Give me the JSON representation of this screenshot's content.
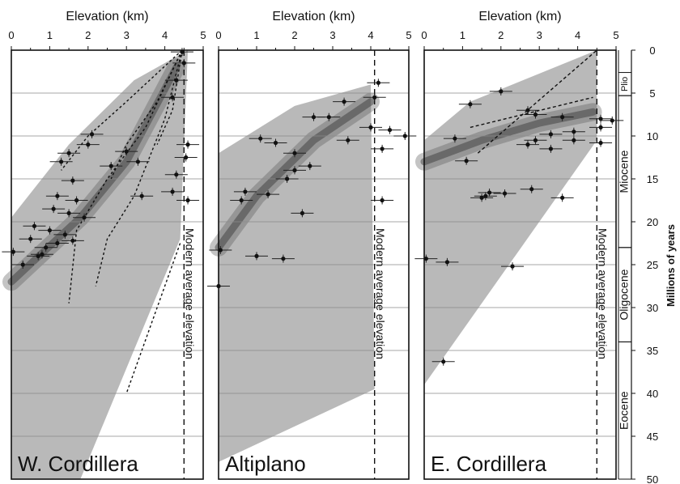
{
  "chart_data": [
    {
      "type": "scatter",
      "title": "",
      "xlabel": "Elevation (km)",
      "ylabel": "Millions of years",
      "panel_label": "W. Cordillera",
      "reference_line_label": "Modern average elevation",
      "x_ticks": [
        "0",
        "1",
        "2",
        "3",
        "4",
        "5"
      ],
      "xlim": [
        0,
        5
      ],
      "ylim": [
        50,
        0
      ],
      "modern_average_elevation_km": 4.5,
      "points": [
        {
          "x": 4.45,
          "y": 0.2
        },
        {
          "x": 4.5,
          "y": 1.5
        },
        {
          "x": 4.3,
          "y": 3.5
        },
        {
          "x": 4.2,
          "y": 5.5
        },
        {
          "x": 2.1,
          "y": 9.8
        },
        {
          "x": 2.0,
          "y": 11.0
        },
        {
          "x": 3.0,
          "y": 11.8
        },
        {
          "x": 4.6,
          "y": 11.0
        },
        {
          "x": 4.55,
          "y": 12.5
        },
        {
          "x": 1.5,
          "y": 12.0
        },
        {
          "x": 1.3,
          "y": 13.0
        },
        {
          "x": 2.6,
          "y": 13.5
        },
        {
          "x": 3.3,
          "y": 13.0
        },
        {
          "x": 4.3,
          "y": 14.5
        },
        {
          "x": 1.6,
          "y": 15.2
        },
        {
          "x": 1.2,
          "y": 17.0
        },
        {
          "x": 1.7,
          "y": 17.5
        },
        {
          "x": 3.4,
          "y": 17.0
        },
        {
          "x": 4.2,
          "y": 16.5
        },
        {
          "x": 4.6,
          "y": 17.5
        },
        {
          "x": 1.1,
          "y": 18.5
        },
        {
          "x": 1.5,
          "y": 19.0
        },
        {
          "x": 1.9,
          "y": 19.5
        },
        {
          "x": 0.6,
          "y": 20.5
        },
        {
          "x": 1.0,
          "y": 21.0
        },
        {
          "x": 1.4,
          "y": 21.5
        },
        {
          "x": 0.5,
          "y": 22.0
        },
        {
          "x": 1.2,
          "y": 22.5
        },
        {
          "x": 1.6,
          "y": 22.2
        },
        {
          "x": 0.9,
          "y": 23.0
        },
        {
          "x": 0.7,
          "y": 24.0
        },
        {
          "x": 0.05,
          "y": 23.5
        },
        {
          "x": 0.3,
          "y": 25.0
        },
        {
          "x": 0.8,
          "y": 23.8
        }
      ],
      "annotation": "Elevation (km)"
    },
    {
      "type": "scatter",
      "title": "",
      "xlabel": "Elevation (km)",
      "ylabel": "Millions of years",
      "panel_label": "Altiplano",
      "reference_line_label": "Modern average elevation",
      "x_ticks": [
        "0",
        "1",
        "2",
        "3",
        "4",
        "5"
      ],
      "xlim": [
        0,
        5
      ],
      "ylim": [
        50,
        0
      ],
      "modern_average_elevation_km": 4.1,
      "points": [
        {
          "x": 4.2,
          "y": 3.8
        },
        {
          "x": 4.1,
          "y": 5.5
        },
        {
          "x": 3.3,
          "y": 6.0
        },
        {
          "x": 2.5,
          "y": 7.8
        },
        {
          "x": 2.9,
          "y": 7.8
        },
        {
          "x": 4.0,
          "y": 9.0
        },
        {
          "x": 4.5,
          "y": 9.3
        },
        {
          "x": 4.9,
          "y": 10.0
        },
        {
          "x": 1.1,
          "y": 10.3
        },
        {
          "x": 1.5,
          "y": 10.8
        },
        {
          "x": 3.4,
          "y": 10.5
        },
        {
          "x": 4.3,
          "y": 11.5
        },
        {
          "x": 2.0,
          "y": 12.0
        },
        {
          "x": 2.4,
          "y": 13.5
        },
        {
          "x": 2.0,
          "y": 14.0
        },
        {
          "x": 1.8,
          "y": 15.0
        },
        {
          "x": 0.7,
          "y": 16.5
        },
        {
          "x": 1.3,
          "y": 16.8
        },
        {
          "x": 0.6,
          "y": 17.5
        },
        {
          "x": 4.3,
          "y": 17.5
        },
        {
          "x": 2.2,
          "y": 19.0
        },
        {
          "x": 0.05,
          "y": 23.3
        },
        {
          "x": 1.0,
          "y": 24.0
        },
        {
          "x": 1.7,
          "y": 24.3
        },
        {
          "x": 0.0,
          "y": 27.5
        }
      ]
    },
    {
      "type": "scatter",
      "title": "",
      "xlabel": "Elevation (km)",
      "ylabel": "Millions of years",
      "panel_label": "E. Cordillera",
      "reference_line_label": "Modern average elevation",
      "x_ticks": [
        "0",
        "1",
        "2",
        "3",
        "4",
        "5"
      ],
      "xlim": [
        0,
        5
      ],
      "ylim": [
        50,
        0
      ],
      "modern_average_elevation_km": 4.5,
      "geologic_epochs": [
        {
          "name": "Plio",
          "start": 2.6,
          "end": 5.3
        },
        {
          "name": "Miocene",
          "start": 5.3,
          "end": 23
        },
        {
          "name": "Oligocene",
          "start": 23,
          "end": 34
        },
        {
          "name": "Eocene",
          "start": 34,
          "end": 50
        }
      ],
      "y_ticks": [
        "0",
        "5",
        "10",
        "15",
        "20",
        "25",
        "30",
        "35",
        "40",
        "45",
        "50"
      ],
      "points": [
        {
          "x": 1.2,
          "y": 6.3
        },
        {
          "x": 2.0,
          "y": 4.8
        },
        {
          "x": 2.7,
          "y": 7.0
        },
        {
          "x": 2.9,
          "y": 7.5
        },
        {
          "x": 3.6,
          "y": 7.8
        },
        {
          "x": 4.6,
          "y": 8.0
        },
        {
          "x": 4.9,
          "y": 8.2
        },
        {
          "x": 3.3,
          "y": 9.8
        },
        {
          "x": 3.9,
          "y": 9.5
        },
        {
          "x": 4.6,
          "y": 9.0
        },
        {
          "x": 0.8,
          "y": 10.3
        },
        {
          "x": 2.9,
          "y": 10.5
        },
        {
          "x": 2.7,
          "y": 11.0
        },
        {
          "x": 3.3,
          "y": 11.5
        },
        {
          "x": 3.9,
          "y": 10.5
        },
        {
          "x": 4.6,
          "y": 10.8
        },
        {
          "x": 1.1,
          "y": 12.9
        },
        {
          "x": 2.8,
          "y": 16.2
        },
        {
          "x": 1.7,
          "y": 16.6
        },
        {
          "x": 2.1,
          "y": 16.7
        },
        {
          "x": 1.6,
          "y": 17.0
        },
        {
          "x": 1.5,
          "y": 17.2
        },
        {
          "x": 3.6,
          "y": 17.2
        },
        {
          "x": 0.05,
          "y": 24.3
        },
        {
          "x": 0.6,
          "y": 24.7
        },
        {
          "x": 2.3,
          "y": 25.2
        },
        {
          "x": 0.5,
          "y": 36.3
        }
      ]
    }
  ]
}
